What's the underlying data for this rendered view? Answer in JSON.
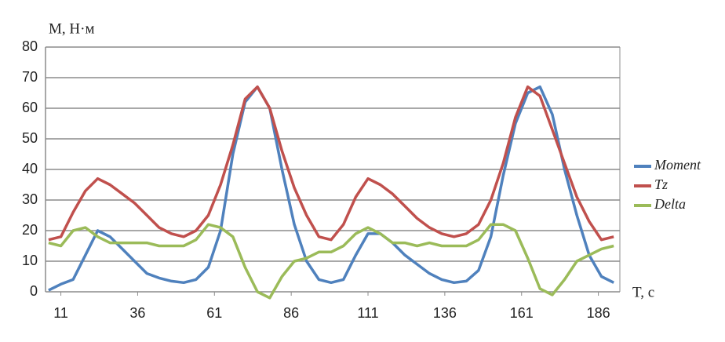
{
  "chart_data": {
    "type": "line",
    "y_label": "M, Н·м",
    "x_label": "T, с",
    "x": [
      7,
      11,
      15,
      19,
      23,
      27,
      31,
      35,
      39,
      43,
      47,
      51,
      55,
      59,
      63,
      67,
      71,
      75,
      79,
      83,
      87,
      91,
      95,
      99,
      103,
      107,
      111,
      115,
      119,
      123,
      127,
      131,
      135,
      139,
      143,
      147,
      151,
      155,
      159,
      163,
      167,
      171,
      175,
      179,
      183,
      187,
      191
    ],
    "series": [
      {
        "name": "Moment",
        "color": "#4f81bd",
        "values": [
          0.5,
          2.5,
          4,
          12,
          20,
          18,
          14,
          10,
          6,
          4.5,
          3.5,
          3,
          4,
          8,
          20,
          45,
          62,
          67,
          60,
          40,
          22,
          10,
          4,
          3,
          4,
          12,
          19,
          19,
          16,
          12,
          9,
          6,
          4,
          3,
          3.5,
          7,
          18,
          38,
          55,
          65,
          67,
          58,
          40,
          25,
          12,
          5,
          3
        ]
      },
      {
        "name": "Tz",
        "color": "#c0504d",
        "values": [
          17,
          18,
          26,
          33,
          37,
          35,
          32,
          29,
          25,
          21,
          19,
          18,
          20,
          25,
          35,
          48,
          63,
          67,
          60,
          46,
          34,
          25,
          18,
          17,
          22,
          31,
          37,
          35,
          32,
          28,
          24,
          21,
          19,
          18,
          19,
          22,
          30,
          42,
          57,
          67,
          64,
          53,
          42,
          31,
          23,
          17,
          18
        ]
      },
      {
        "name": "Delta",
        "color": "#9bbb59",
        "values": [
          16,
          15,
          20,
          21,
          18,
          16,
          16,
          16,
          16,
          15,
          15,
          15,
          17,
          22,
          21,
          18,
          8,
          0,
          -2,
          5,
          10,
          11,
          13,
          13,
          15,
          19,
          21,
          19,
          16,
          16,
          15,
          16,
          15,
          15,
          15,
          17,
          22,
          22,
          20,
          11,
          1,
          -1,
          4,
          10,
          12,
          14,
          15
        ]
      }
    ],
    "xlim": [
      6,
      193
    ],
    "ylim": [
      0,
      80
    ],
    "xticks": [
      11,
      36,
      61,
      86,
      111,
      136,
      161,
      186
    ],
    "yticks": [
      0,
      10,
      20,
      30,
      40,
      50,
      60,
      70,
      80
    ],
    "grid": true,
    "legend": "right"
  }
}
